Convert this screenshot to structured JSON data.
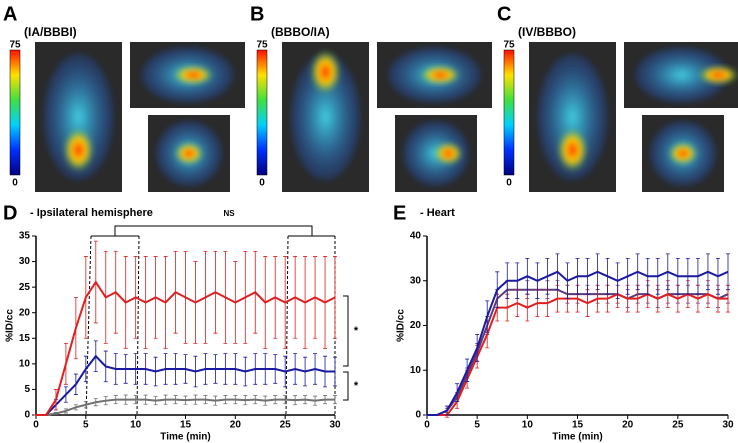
{
  "panels": [
    {
      "letter": "A",
      "label": "(IA/BBBI)",
      "color": "#1a1aa0",
      "colorbar_max": 75,
      "colorbar_min": 0
    },
    {
      "letter": "B",
      "label": "(BBBO/IA)",
      "color": "#e02020",
      "colorbar_max": 75,
      "colorbar_min": 0
    },
    {
      "letter": "C",
      "label": "(IV/BBBO)",
      "color": "#707070",
      "colorbar_max": 75,
      "colorbar_min": 0
    }
  ],
  "chart_data": [
    {
      "type": "line",
      "letter": "D",
      "title": "- Ipsilateral hemisphere",
      "xlabel": "Time (min)",
      "ylabel": "%ID/cc",
      "xlim": [
        0,
        30
      ],
      "xticks": [
        0,
        5,
        10,
        15,
        20,
        25,
        30
      ],
      "ylim": [
        0,
        35
      ],
      "yticks": [
        0,
        5,
        10,
        15,
        20,
        25,
        30,
        35
      ],
      "annotations": [
        "NS",
        "*",
        "*"
      ],
      "x": [
        0,
        1,
        2,
        3,
        4,
        5,
        6,
        7,
        8,
        9,
        10,
        11,
        12,
        13,
        14,
        15,
        16,
        17,
        18,
        19,
        20,
        21,
        22,
        23,
        24,
        25,
        26,
        27,
        28,
        29,
        30
      ],
      "series": [
        {
          "color": "#707070",
          "values": [
            0,
            0,
            0.3,
            0.8,
            1.5,
            2,
            2.5,
            2.8,
            3,
            3,
            3,
            3,
            2.8,
            3,
            3,
            2.9,
            3,
            3,
            2.8,
            3,
            3,
            2.9,
            3,
            2.8,
            3,
            3,
            2.9,
            3,
            2.8,
            3,
            3
          ],
          "errors": [
            0,
            0,
            0.2,
            0.4,
            0.5,
            0.6,
            0.7,
            0.8,
            0.8,
            0.9,
            0.8,
            0.9,
            0.8,
            0.9,
            0.8,
            0.8,
            0.9,
            0.8,
            0.9,
            0.8,
            0.8,
            0.9,
            0.8,
            0.9,
            0.8,
            0.8,
            0.9,
            0.8,
            0.9,
            0.8,
            0.8
          ]
        },
        {
          "color": "#1a1aa0",
          "values": [
            0,
            0,
            2,
            4,
            6,
            9,
            11.5,
            9.5,
            9,
            9,
            9,
            9,
            8.5,
            9,
            9,
            9,
            8.5,
            9,
            9,
            9,
            9,
            8.5,
            9,
            9,
            9,
            8.5,
            9,
            8.5,
            9,
            8.5,
            8.5
          ],
          "errors": [
            0,
            0,
            1,
            1.5,
            2,
            2.5,
            3,
            3,
            3,
            2.8,
            3,
            3,
            2.8,
            3,
            3,
            2.8,
            3,
            3,
            2.8,
            3,
            3,
            2.8,
            3,
            3,
            2.8,
            3,
            3,
            2.8,
            3,
            3,
            2.8
          ]
        },
        {
          "color": "#e02020",
          "values": [
            0,
            0,
            3,
            10,
            17,
            23,
            26,
            23,
            24,
            22,
            23,
            22,
            23,
            22,
            24,
            23,
            22,
            23,
            24,
            23,
            22,
            23,
            24,
            22,
            23,
            22,
            23,
            22,
            23,
            22,
            23
          ],
          "errors": [
            0,
            0,
            2,
            4,
            6,
            8,
            8,
            9,
            8,
            9,
            8,
            9,
            8,
            9,
            8,
            9,
            8,
            9,
            8,
            9,
            8,
            9,
            8,
            9,
            8,
            9,
            8,
            9,
            8,
            9,
            8
          ]
        }
      ]
    },
    {
      "type": "line",
      "letter": "E",
      "title": "- Heart",
      "xlabel": "Time (min)",
      "ylabel": "%ID/cc",
      "xlim": [
        0,
        30
      ],
      "xticks": [
        0,
        5,
        10,
        15,
        20,
        25,
        30
      ],
      "ylim": [
        0,
        40
      ],
      "yticks": [
        0,
        10,
        20,
        30,
        40
      ],
      "x": [
        0,
        1,
        2,
        3,
        4,
        5,
        6,
        7,
        8,
        9,
        10,
        11,
        12,
        13,
        14,
        15,
        16,
        17,
        18,
        19,
        20,
        21,
        22,
        23,
        24,
        25,
        26,
        27,
        28,
        29,
        30
      ],
      "series": [
        {
          "color": "#5a3a7a",
          "values": [
            0,
            0,
            1,
            4,
            9,
            14,
            20,
            26,
            28,
            28,
            28,
            28,
            28,
            28,
            27,
            27,
            27,
            27,
            27,
            27,
            26,
            27,
            27,
            26,
            27,
            27,
            27,
            27,
            27,
            26,
            27
          ],
          "errors": [
            0,
            0,
            0.5,
            1,
            1.5,
            2,
            2,
            2,
            2,
            2,
            2,
            2,
            2,
            2,
            2,
            2,
            2,
            2,
            2,
            2,
            2,
            2,
            2,
            2,
            2,
            2,
            2,
            2,
            2,
            2,
            2
          ]
        },
        {
          "color": "#e02020",
          "values": [
            0,
            0,
            0,
            3,
            8,
            13,
            18,
            24,
            24,
            25,
            24,
            25,
            25,
            26,
            26,
            26,
            25,
            26,
            26,
            27,
            26,
            26,
            27,
            26,
            27,
            26,
            27,
            26,
            27,
            26,
            26
          ],
          "errors": [
            0,
            0,
            0.5,
            1.5,
            2,
            2.5,
            3,
            3,
            3,
            3,
            3,
            3,
            3,
            3,
            3,
            3,
            3,
            3,
            3,
            3,
            3,
            3,
            3,
            3,
            3,
            3,
            3,
            3,
            3,
            3,
            3
          ]
        },
        {
          "color": "#1a1aa0",
          "values": [
            0,
            0,
            1,
            5,
            10,
            15,
            22,
            28,
            30,
            30,
            31,
            30,
            31,
            32,
            30,
            31,
            31,
            32,
            31,
            30,
            31,
            32,
            31,
            31,
            32,
            31,
            31,
            31,
            32,
            31,
            32
          ],
          "errors": [
            0,
            0,
            1,
            2,
            2.5,
            3,
            3.5,
            4,
            4,
            4,
            4,
            4,
            4,
            4,
            4,
            4,
            4,
            4,
            4,
            4,
            4,
            4,
            4,
            4,
            4,
            4,
            4,
            4,
            4,
            4,
            4
          ]
        }
      ]
    }
  ]
}
